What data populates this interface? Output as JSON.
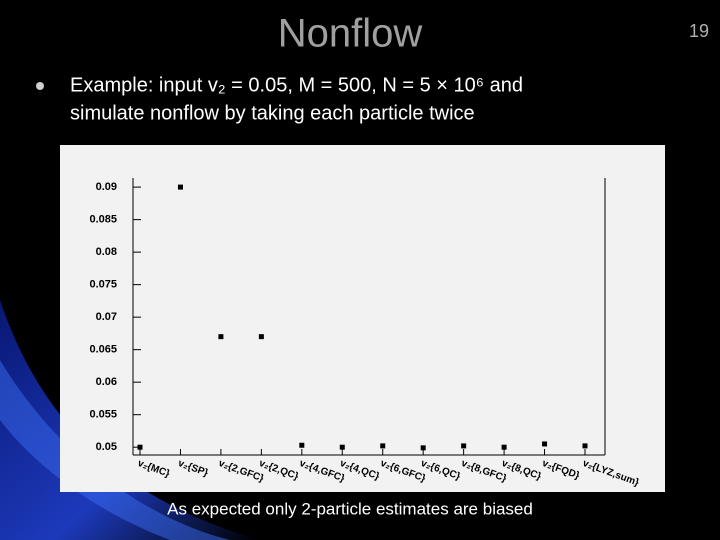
{
  "slide": {
    "title": "Nonflow",
    "page_number": "19",
    "bullet": [
      "Example: input v₂ = 0.05, M = 500, N = 5 × 10⁶ and",
      "simulate nonflow by taking each particle twice"
    ],
    "caption": "As expected only 2-particle estimates are biased"
  },
  "chart_data": {
    "type": "scatter",
    "categories": [
      "v₂{MC}",
      "v₂{SP}",
      "v₂{2,GFC}",
      "v₂{2,QC}",
      "v₂{4,GFC}",
      "v₂{4,QC}",
      "v₂{6,GFC}",
      "v₂{6,QC}",
      "v₂{8,GFC}",
      "v₂{8,QC}",
      "v₂{FQD}",
      "v₂{LYZ,sum}"
    ],
    "values": [
      0.05,
      0.09,
      0.067,
      0.067,
      0.0503,
      0.05,
      0.0502,
      0.0499,
      0.0502,
      0.05,
      0.0505,
      0.0502
    ],
    "color": "#000000",
    "ylim": [
      0.0488,
      0.0914
    ],
    "yticks": [
      0.05,
      0.055,
      0.06,
      0.065,
      0.07,
      0.075,
      0.08,
      0.085,
      0.09
    ]
  }
}
